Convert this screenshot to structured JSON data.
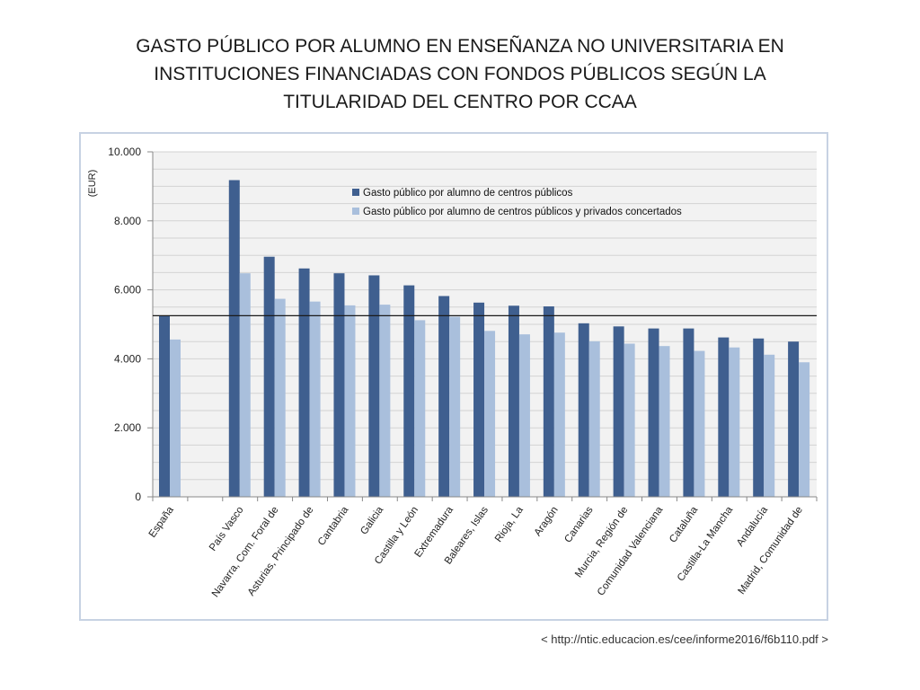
{
  "title_lines": [
    "GASTO PÚBLICO POR ALUMNO EN ENSEÑANZA NO UNIVERSITARIA EN",
    "INSTITUCIONES FINANCIADAS CON FONDOS PÚBLICOS SEGÚN LA",
    "TITULARIDAD DEL CENTRO POR CCAA"
  ],
  "source": "< http://ntic.educacion.es/cee/informe2016/f6b110.pdf >",
  "colors": {
    "series_public": "#3f5f8f",
    "series_concertados": "#a9bfdc",
    "grid": "#d3d3d3",
    "plot_bg": "#f2f2f2",
    "reference_line": "#1a1a1a"
  },
  "chart_data": {
    "type": "bar",
    "title": "GASTO PÚBLICO POR ALUMNO EN ENSEÑANZA NO UNIVERSITARIA EN INSTITUCIONES FINANCIADAS CON FONDOS PÚBLICOS SEGÚN LA TITULARIDAD DEL CENTRO POR CCAA",
    "xlabel": "",
    "ylabel": "(EUR)",
    "ylim": [
      0,
      10000
    ],
    "yticks": [
      0,
      2000,
      4000,
      6000,
      8000,
      10000
    ],
    "ytick_labels": [
      "0",
      "2.000",
      "4.000",
      "6.000",
      "8.000",
      "10.000"
    ],
    "grid": true,
    "legend_position": "top-right",
    "reference_line": {
      "value": 5250,
      "label": "España"
    },
    "categories": [
      "España",
      "",
      "País Vasco",
      "Navarra, Com. Foral de",
      "Asturias, Principado de",
      "Cantabria",
      "Galicia",
      "Castilla y León",
      "Extremadura",
      "Baleares, Islas",
      "Rioja, La",
      "Aragón",
      "Canarias",
      "Murcia, Región de",
      "Comunidad Valenciana",
      "Cataluña",
      "Castilla-La Mancha",
      "Andalucía",
      "Madrid, Comunidad de"
    ],
    "series": [
      {
        "name": "Gasto público por alumno de centros públicos",
        "values": [
          5250,
          null,
          9180,
          6960,
          6620,
          6480,
          6420,
          6130,
          5820,
          5630,
          5540,
          5520,
          5030,
          4940,
          4880,
          4880,
          4620,
          4590,
          4500
        ]
      },
      {
        "name": "Gasto público por alumno de centros públicos y privados concertados",
        "values": [
          4560,
          null,
          6480,
          5740,
          5660,
          5550,
          5570,
          5120,
          5220,
          4810,
          4710,
          4760,
          4510,
          4440,
          4370,
          4230,
          4330,
          4120,
          3900
        ]
      }
    ]
  }
}
